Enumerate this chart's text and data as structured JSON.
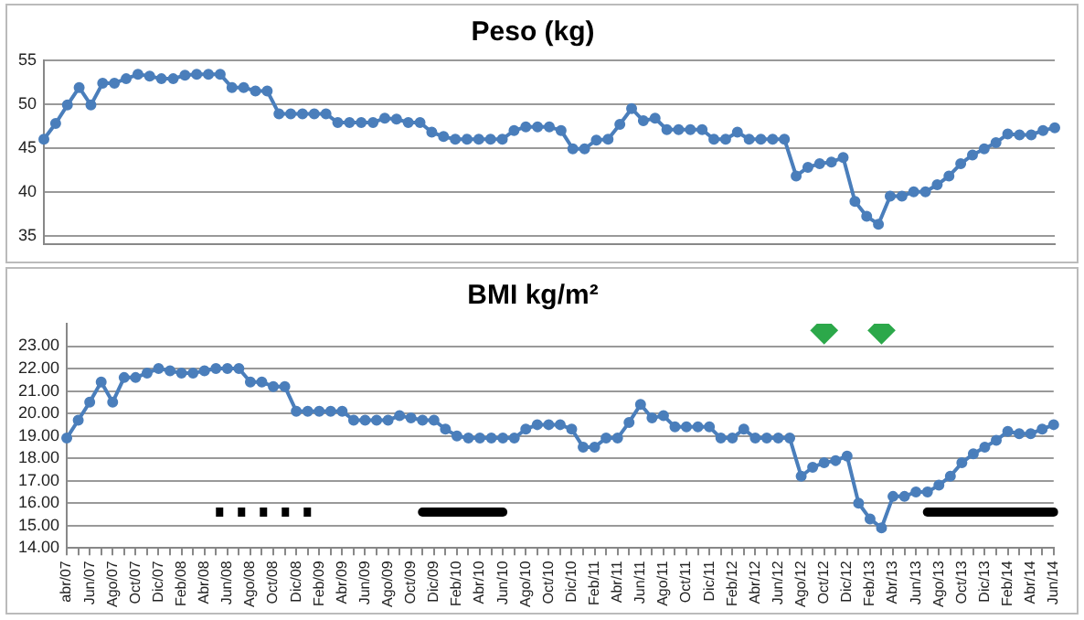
{
  "chart_data": [
    {
      "type": "line",
      "title": "Peso (kg)",
      "categories": [
        null,
        null,
        null,
        null,
        null,
        null,
        null,
        null,
        null,
        null,
        null,
        null,
        null,
        null,
        null,
        null,
        null,
        null,
        null,
        null,
        null,
        null,
        null,
        null,
        null,
        null,
        null,
        null,
        null,
        null,
        null,
        null,
        null,
        null,
        null,
        null,
        null,
        null,
        null,
        null,
        null,
        null,
        null,
        null,
        null,
        null,
        null,
        null,
        null,
        null,
        null,
        null,
        null,
        null,
        null,
        null,
        null,
        null,
        null,
        null,
        null,
        null,
        null,
        null,
        null,
        null,
        null,
        null,
        null,
        null,
        null,
        null,
        null,
        null,
        null,
        null,
        null,
        null,
        null,
        null,
        null,
        null,
        null,
        null,
        null,
        null,
        null
      ],
      "series": [
        {
          "color": "#4a7ebb",
          "values": [
            46.0,
            47.8,
            49.9,
            51.9,
            49.9,
            52.4,
            52.4,
            52.9,
            53.4,
            53.2,
            52.9,
            52.9,
            53.3,
            53.4,
            53.4,
            53.4,
            51.9,
            51.9,
            51.5,
            51.5,
            48.9,
            48.9,
            48.9,
            48.9,
            48.9,
            47.9,
            47.9,
            47.9,
            47.9,
            48.4,
            48.3,
            47.9,
            47.9,
            46.8,
            46.3,
            46.0,
            46.0,
            46.0,
            46.0,
            46.0,
            47.0,
            47.4,
            47.4,
            47.4,
            47.0,
            44.9,
            44.9,
            45.9,
            46.0,
            47.7,
            49.5,
            48.1,
            48.4,
            47.1,
            47.1,
            47.1,
            47.1,
            46.0,
            46.0,
            46.8,
            46.0,
            46.0,
            46.0,
            46.0,
            41.8,
            42.8,
            43.2,
            43.4,
            43.9,
            38.9,
            37.2,
            36.3,
            39.5,
            39.5,
            40.0,
            40.0,
            40.8,
            41.8,
            43.2,
            44.2,
            44.9,
            45.6,
            46.6,
            46.5,
            46.5,
            47.0,
            47.3
          ]
        }
      ],
      "ylim": [
        34,
        55
      ],
      "yticks": [
        35,
        40,
        45,
        50,
        55
      ],
      "grid": "y",
      "legend": false,
      "marker": "circle",
      "tick_labels": "y"
    },
    {
      "type": "line",
      "title": "BMI kg/m²",
      "categories": [
        "abr/07",
        null,
        "Jun/07",
        null,
        "Ago/07",
        null,
        "Oct/07",
        null,
        "Dic/07",
        null,
        "Feb/08",
        null,
        "Abr/08",
        null,
        "Jun/08",
        null,
        "Ago/08",
        null,
        "Oct/08",
        null,
        "Dic/08",
        null,
        "Feb/09",
        null,
        "Abr/09",
        null,
        "Jun/09",
        null,
        "Ago/09",
        null,
        "Oct/09",
        null,
        "Dic/09",
        null,
        "Feb/10",
        null,
        "Abr/10",
        null,
        "Jun/10",
        null,
        "Ago/10",
        null,
        "Oct/10",
        null,
        "Dic/10",
        null,
        "Feb/11",
        null,
        "Abr/11",
        null,
        "Jun/11",
        null,
        "Ago/11",
        null,
        "Oct/11",
        null,
        "Dic/11",
        null,
        "Feb/12",
        null,
        "Abr/12",
        null,
        "Jun/12",
        null,
        "Ago/12",
        null,
        "Oct/12",
        null,
        "Dic/12",
        null,
        "Feb/13",
        null,
        "Abr/13",
        null,
        "Jun/13",
        null,
        "Ago/13",
        null,
        "Oct/13",
        null,
        "Dic/13",
        null,
        "Feb/14",
        null,
        "Abr/14",
        null,
        "Jun/14"
      ],
      "series": [
        {
          "color": "#4a7ebb",
          "marker": "circle",
          "values": [
            18.9,
            19.7,
            20.5,
            21.4,
            20.5,
            21.6,
            21.6,
            21.8,
            22.0,
            21.9,
            21.8,
            21.8,
            21.9,
            22.0,
            22.0,
            22.0,
            21.4,
            21.4,
            21.2,
            21.2,
            20.1,
            20.1,
            20.1,
            20.1,
            20.1,
            19.7,
            19.7,
            19.7,
            19.7,
            19.9,
            19.8,
            19.7,
            19.7,
            19.3,
            19.0,
            18.9,
            18.9,
            18.9,
            18.9,
            18.9,
            19.3,
            19.5,
            19.5,
            19.5,
            19.3,
            18.5,
            18.5,
            18.9,
            18.9,
            19.6,
            20.4,
            19.8,
            19.9,
            19.4,
            19.4,
            19.4,
            19.4,
            18.9,
            18.9,
            19.3,
            18.9,
            18.9,
            18.9,
            18.9,
            17.2,
            17.6,
            17.8,
            17.9,
            18.1,
            16.0,
            15.3,
            14.9,
            16.3,
            16.3,
            16.5,
            16.5,
            16.8,
            17.2,
            17.8,
            18.2,
            18.5,
            18.8,
            19.2,
            19.1,
            19.1,
            19.3,
            19.5
          ]
        },
        {
          "type": "line",
          "color": "#000000",
          "marker": "none",
          "line_style": "dotted",
          "values": [
            null,
            null,
            null,
            null,
            null,
            null,
            null,
            null,
            null,
            null,
            null,
            null,
            null,
            15.6,
            15.6,
            15.6,
            15.6,
            15.6,
            15.6,
            15.6,
            15.6,
            15.6,
            15.6,
            null,
            null,
            null,
            null,
            null,
            null,
            null,
            null,
            null,
            null,
            null,
            null,
            null,
            null,
            null,
            null,
            null,
            null,
            null,
            null,
            null,
            null,
            null,
            null,
            null,
            null,
            null,
            null,
            null,
            null,
            null,
            null,
            null,
            null,
            null,
            null,
            null,
            null,
            null,
            null,
            null,
            null,
            null,
            null,
            null,
            null,
            null,
            null,
            null,
            null,
            null,
            null,
            null,
            null,
            null,
            null,
            null,
            null,
            null,
            null,
            null,
            null,
            null,
            null
          ]
        },
        {
          "type": "line",
          "color": "#000000",
          "marker": "none",
          "line_style": "solid",
          "values": [
            null,
            null,
            null,
            null,
            null,
            null,
            null,
            null,
            null,
            null,
            null,
            null,
            null,
            null,
            null,
            null,
            null,
            null,
            null,
            null,
            null,
            null,
            null,
            null,
            null,
            null,
            null,
            null,
            null,
            null,
            null,
            15.6,
            15.6,
            15.6,
            15.6,
            15.6,
            15.6,
            15.6,
            15.6,
            null,
            null,
            null,
            null,
            null,
            null,
            null,
            null,
            null,
            null,
            null,
            null,
            null,
            null,
            null,
            null,
            null,
            null,
            null,
            null,
            null,
            null,
            null,
            null,
            null,
            null,
            null,
            null,
            null,
            null,
            null,
            null,
            null,
            null,
            null,
            null,
            null,
            null,
            null,
            null,
            null,
            null,
            null,
            null,
            null,
            null,
            null,
            null
          ]
        },
        {
          "type": "line",
          "color": "#000000",
          "marker": "none",
          "line_style": "solid",
          "values": [
            null,
            null,
            null,
            null,
            null,
            null,
            null,
            null,
            null,
            null,
            null,
            null,
            null,
            null,
            null,
            null,
            null,
            null,
            null,
            null,
            null,
            null,
            null,
            null,
            null,
            null,
            null,
            null,
            null,
            null,
            null,
            null,
            null,
            null,
            null,
            null,
            null,
            null,
            null,
            null,
            null,
            null,
            null,
            null,
            null,
            null,
            null,
            null,
            null,
            null,
            null,
            null,
            null,
            null,
            null,
            null,
            null,
            null,
            null,
            null,
            null,
            null,
            null,
            null,
            null,
            null,
            null,
            null,
            null,
            null,
            null,
            null,
            null,
            null,
            null,
            15.6,
            15.6,
            15.6,
            15.6,
            15.6,
            15.6,
            15.6,
            15.6,
            15.6,
            15.6,
            15.6,
            15.6
          ]
        },
        {
          "type": "scatter",
          "color": "#2ca84a",
          "marker": "diamond",
          "values": [
            null,
            null,
            null,
            null,
            null,
            null,
            null,
            null,
            null,
            null,
            null,
            null,
            null,
            null,
            null,
            null,
            null,
            null,
            null,
            null,
            null,
            null,
            null,
            null,
            null,
            null,
            null,
            null,
            null,
            null,
            null,
            null,
            null,
            null,
            null,
            null,
            null,
            null,
            null,
            null,
            null,
            null,
            null,
            null,
            null,
            null,
            null,
            null,
            null,
            null,
            null,
            null,
            null,
            null,
            null,
            null,
            null,
            null,
            null,
            null,
            null,
            null,
            null,
            null,
            null,
            null,
            23.7,
            null,
            null,
            null,
            null,
            null,
            null,
            null,
            null,
            null,
            null,
            null,
            null,
            null,
            null,
            null,
            null,
            null,
            null,
            null,
            null
          ]
        },
        {
          "type": "scatter",
          "color": "#2ca84a",
          "marker": "diamond",
          "values": [
            null,
            null,
            null,
            null,
            null,
            null,
            null,
            null,
            null,
            null,
            null,
            null,
            null,
            null,
            null,
            null,
            null,
            null,
            null,
            null,
            null,
            null,
            null,
            null,
            null,
            null,
            null,
            null,
            null,
            null,
            null,
            null,
            null,
            null,
            null,
            null,
            null,
            null,
            null,
            null,
            null,
            null,
            null,
            null,
            null,
            null,
            null,
            null,
            null,
            null,
            null,
            null,
            null,
            null,
            null,
            null,
            null,
            null,
            null,
            null,
            null,
            null,
            null,
            null,
            null,
            null,
            null,
            null,
            null,
            null,
            null,
            23.7,
            null,
            null,
            null,
            null,
            null,
            null,
            null,
            null,
            null,
            null,
            null,
            null,
            null,
            null,
            null
          ]
        }
      ],
      "ylim": [
        14,
        24
      ],
      "yticks": [
        {
          "value": 14,
          "label": "14.00"
        },
        {
          "value": 15,
          "label": "15.00"
        },
        {
          "value": 16,
          "label": "16.00"
        },
        {
          "value": 17,
          "label": "17.00"
        },
        {
          "value": 18,
          "label": "18.00"
        },
        {
          "value": 19,
          "label": "19.00"
        },
        {
          "value": 20,
          "label": "20.00"
        },
        {
          "value": 21,
          "label": "21.00"
        },
        {
          "value": 22,
          "label": "22.00"
        },
        {
          "value": 23,
          "label": "23.00"
        }
      ],
      "grid": "y",
      "legend": false
    }
  ]
}
